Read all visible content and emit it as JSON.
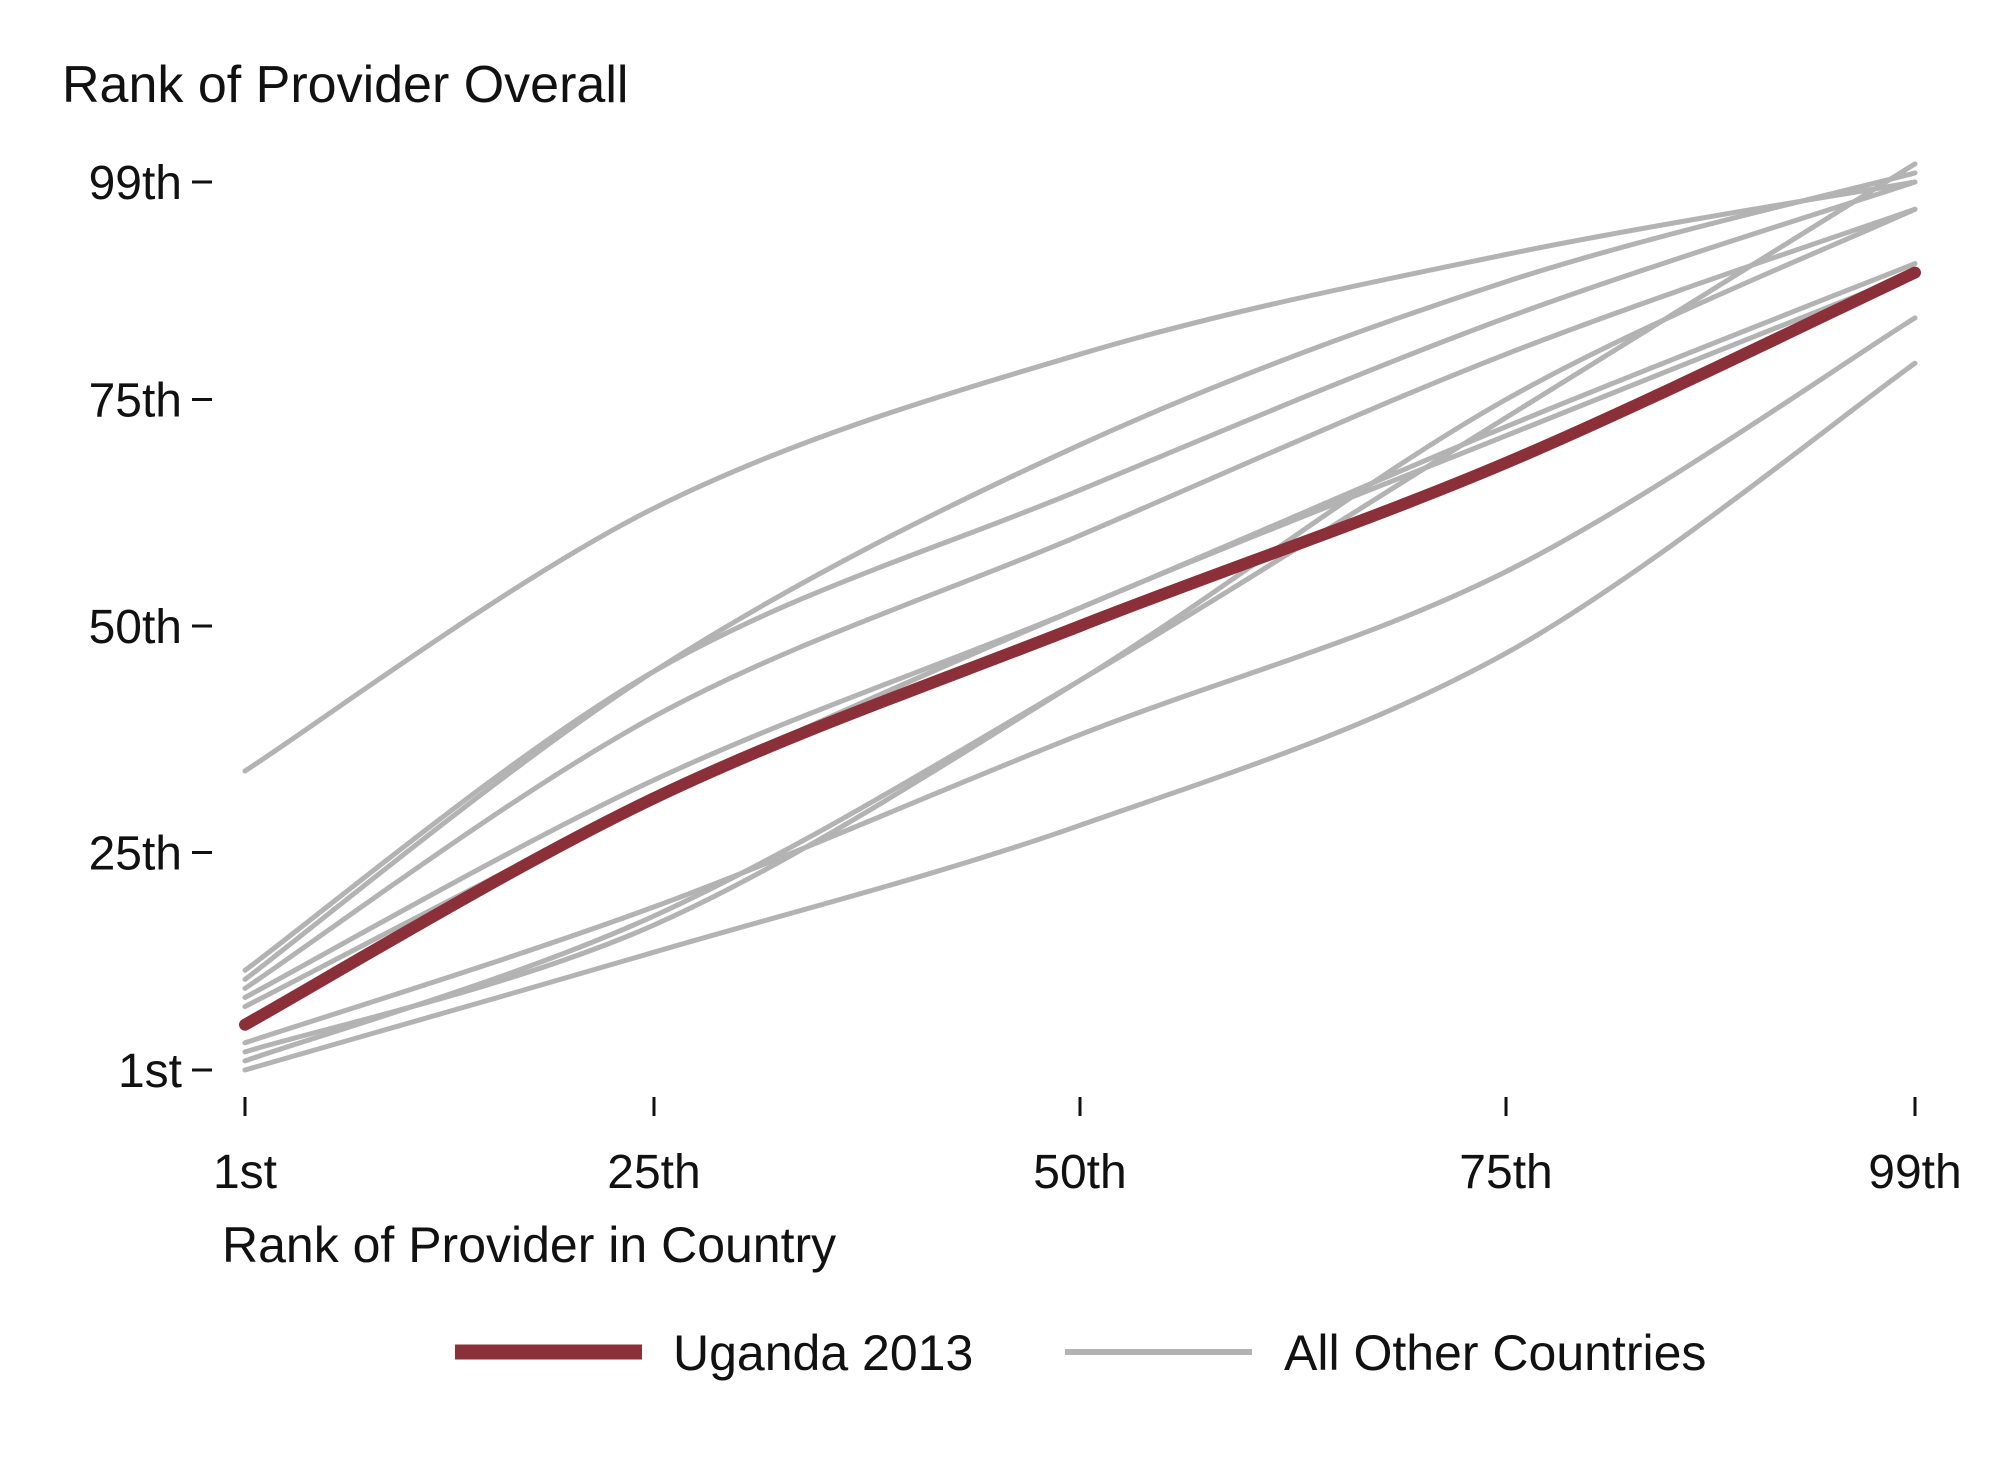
{
  "chart_data": {
    "type": "line",
    "ylabel": "Rank of Provider Overall",
    "xlabel": "Rank of Provider in Country",
    "x_ticks": [
      {
        "value": 1,
        "label": "1st"
      },
      {
        "value": 25,
        "label": "25th"
      },
      {
        "value": 50,
        "label": "50th"
      },
      {
        "value": 75,
        "label": "75th"
      },
      {
        "value": 99,
        "label": "99th"
      }
    ],
    "y_ticks": [
      {
        "value": 1,
        "label": "1st"
      },
      {
        "value": 25,
        "label": "25th"
      },
      {
        "value": 50,
        "label": "50th"
      },
      {
        "value": 75,
        "label": "75th"
      },
      {
        "value": 99,
        "label": "99th"
      }
    ],
    "xlim": [
      1,
      99
    ],
    "ylim": [
      1,
      99
    ],
    "grid": false,
    "legend_position": "bottom",
    "legend": [
      {
        "label": "Uganda 2013",
        "color": "#8b3038"
      },
      {
        "label": "All Other Countries",
        "color": "#b3b3b3"
      }
    ],
    "highlight_color": "#8b3038",
    "other_color": "#b3b3b3",
    "x": [
      1,
      25,
      50,
      75,
      99
    ],
    "highlight_series": {
      "name": "Uganda 2013",
      "values": [
        6,
        31,
        50,
        68,
        89
      ]
    },
    "other_series": [
      {
        "values": [
          34,
          63,
          80,
          91,
          99
        ]
      },
      {
        "values": [
          12,
          45,
          65,
          84,
          99
        ]
      },
      {
        "values": [
          11,
          45,
          70,
          88,
          100
        ]
      },
      {
        "values": [
          10,
          40,
          60,
          80,
          96
        ]
      },
      {
        "values": [
          9,
          33,
          52,
          72,
          90
        ]
      },
      {
        "values": [
          8,
          31,
          52,
          71,
          89
        ]
      },
      {
        "values": [
          4,
          19,
          38,
          56,
          84
        ]
      },
      {
        "values": [
          3,
          17,
          44,
          75,
          96
        ]
      },
      {
        "values": [
          2,
          18,
          44,
          73,
          101
        ]
      },
      {
        "values": [
          1,
          14,
          28,
          47,
          79
        ]
      }
    ]
  }
}
